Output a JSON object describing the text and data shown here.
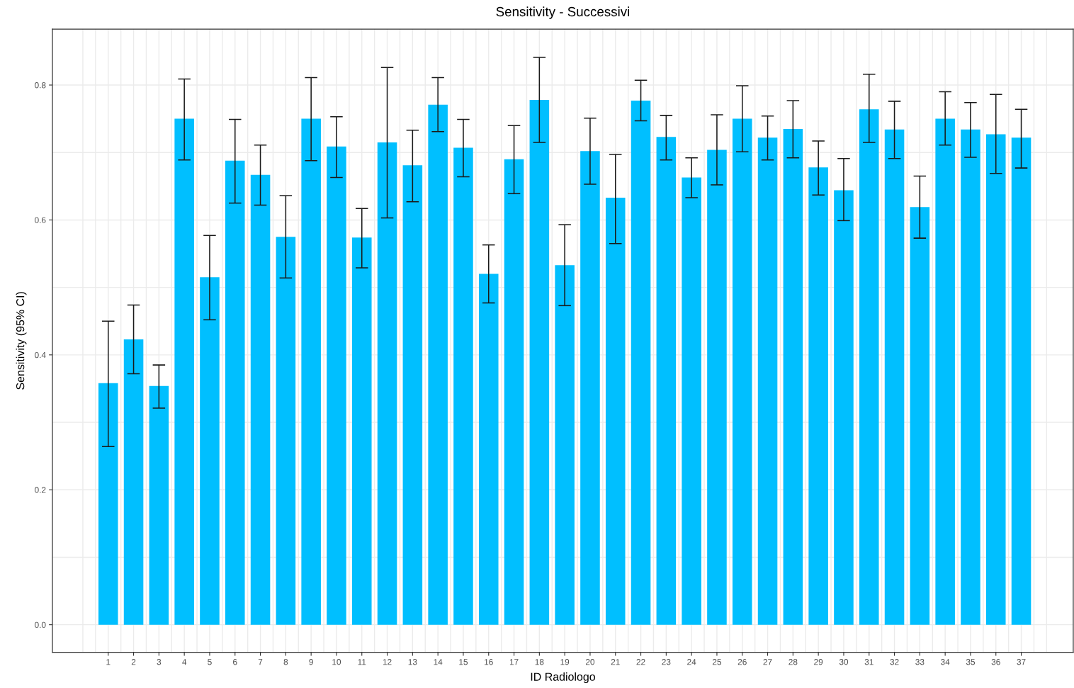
{
  "chart_data": {
    "type": "bar",
    "title": "Sensitivity - Successivi",
    "xlabel": "ID Radiologo",
    "ylabel": "Sensitivity (95% CI)",
    "x": [
      1,
      2,
      3,
      4,
      5,
      6,
      7,
      8,
      9,
      10,
      11,
      12,
      13,
      14,
      15,
      16,
      17,
      18,
      19,
      20,
      21,
      22,
      23,
      24,
      25,
      26,
      27,
      28,
      29,
      30,
      31,
      32,
      33,
      34,
      35,
      36,
      37
    ],
    "values": [
      0.358,
      0.423,
      0.354,
      0.75,
      0.515,
      0.688,
      0.667,
      0.575,
      0.75,
      0.709,
      0.574,
      0.715,
      0.681,
      0.771,
      0.707,
      0.52,
      0.69,
      0.778,
      0.533,
      0.702,
      0.633,
      0.777,
      0.723,
      0.663,
      0.704,
      0.75,
      0.722,
      0.735,
      0.678,
      0.644,
      0.764,
      0.734,
      0.619,
      0.75,
      0.734,
      0.727,
      0.722
    ],
    "errors": [
      [
        0.264,
        0.45
      ],
      [
        0.372,
        0.474
      ],
      [
        0.321,
        0.385
      ],
      [
        0.689,
        0.809
      ],
      [
        0.452,
        0.577
      ],
      [
        0.625,
        0.749
      ],
      [
        0.622,
        0.711
      ],
      [
        0.514,
        0.636
      ],
      [
        0.688,
        0.811
      ],
      [
        0.663,
        0.753
      ],
      [
        0.529,
        0.617
      ],
      [
        0.603,
        0.826
      ],
      [
        0.627,
        0.733
      ],
      [
        0.731,
        0.811
      ],
      [
        0.664,
        0.749
      ],
      [
        0.477,
        0.563
      ],
      [
        0.639,
        0.74
      ],
      [
        0.715,
        0.841
      ],
      [
        0.473,
        0.593
      ],
      [
        0.653,
        0.751
      ],
      [
        0.565,
        0.697
      ],
      [
        0.747,
        0.807
      ],
      [
        0.689,
        0.755
      ],
      [
        0.633,
        0.692
      ],
      [
        0.652,
        0.756
      ],
      [
        0.701,
        0.799
      ],
      [
        0.689,
        0.754
      ],
      [
        0.692,
        0.777
      ],
      [
        0.637,
        0.717
      ],
      [
        0.599,
        0.691
      ],
      [
        0.715,
        0.816
      ],
      [
        0.691,
        0.776
      ],
      [
        0.573,
        0.665
      ],
      [
        0.711,
        0.79
      ],
      [
        0.693,
        0.774
      ],
      [
        0.669,
        0.786
      ],
      [
        0.677,
        0.764
      ]
    ],
    "color": "#00bfff",
    "xlim": [
      -1.2,
      39.05
    ],
    "xticks": [
      1,
      2,
      3,
      4,
      5,
      6,
      7,
      8,
      9,
      10,
      11,
      12,
      13,
      14,
      15,
      16,
      17,
      18,
      19,
      20,
      21,
      22,
      23,
      24,
      25,
      26,
      27,
      28,
      29,
      30,
      31,
      32,
      33,
      34,
      35,
      36,
      37
    ],
    "ylim": [
      -0.041,
      0.883
    ],
    "yticks": [
      {
        "value": 0,
        "label": "0.0"
      },
      0.2,
      0.4,
      0.6,
      0.8
    ],
    "grid": true
  }
}
